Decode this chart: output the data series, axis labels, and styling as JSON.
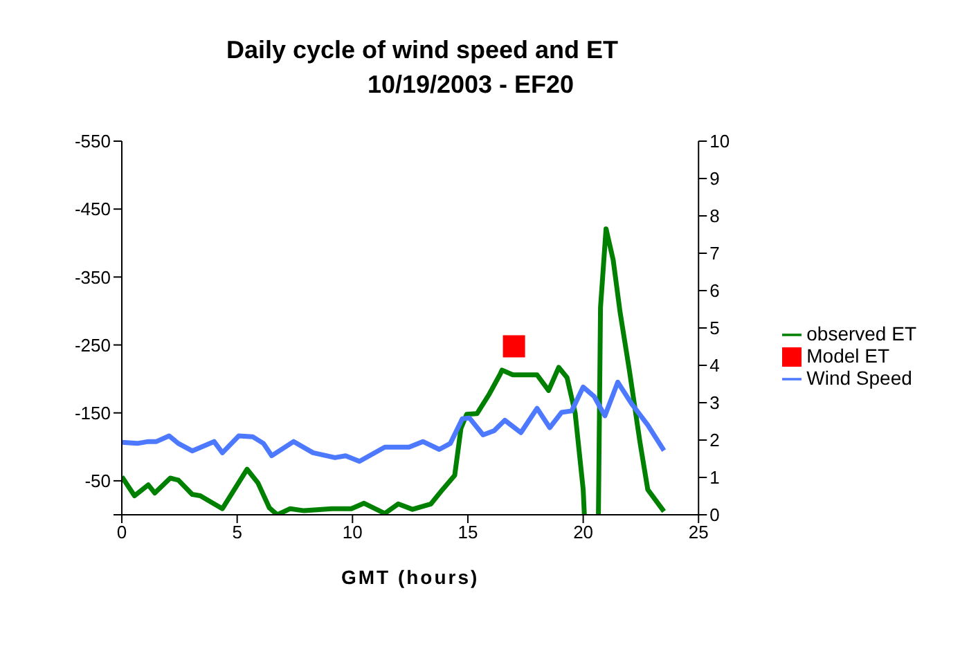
{
  "chart_data": {
    "type": "line",
    "title": "Daily cycle of wind speed and ET",
    "subtitle": "10/19/2003 - EF20",
    "xlabel": "GMT (hours)",
    "xlim": [
      0,
      25
    ],
    "xticks": [
      0,
      5,
      10,
      15,
      20,
      25
    ],
    "ylim": [
      0,
      -550
    ],
    "yticks": [
      {
        "value": 0,
        "label": null
      },
      -50,
      -150,
      -250,
      -350,
      -450,
      -550
    ],
    "y2lim": [
      0,
      10
    ],
    "y2ticks": [
      0,
      1,
      2,
      3,
      4,
      5,
      6,
      7,
      8,
      9,
      10
    ],
    "grid": false,
    "legend": "right",
    "marker": "none",
    "line_style": "solid",
    "series": [
      {
        "name": "observed ET",
        "color": "#008000",
        "x": [
          0,
          0.55,
          1.15,
          1.43,
          2.1,
          2.45,
          3.05,
          3.4,
          4.36,
          5.43,
          5.9,
          6.4,
          6.74,
          7.3,
          7.9,
          9.1,
          9.95,
          10.5,
          11.4,
          11.98,
          12.6,
          13.4,
          13.9,
          14.43,
          14.7,
          14.95,
          15.4,
          15.9,
          16.4,
          16.48,
          16.95,
          18.0,
          18.5,
          18.94,
          19.3,
          19.65,
          20.0,
          20.05,
          20.3,
          20.66,
          20.75,
          20.99,
          21.3,
          21.6,
          22.0,
          22.46,
          22.8,
          23.5
        ],
        "values": [
          -56,
          -28,
          -44,
          -32,
          -54,
          -51,
          -30,
          -28,
          -9,
          -67,
          -47,
          -10,
          0,
          -9,
          -6,
          -9,
          -9,
          -17,
          -2,
          -16,
          -8,
          -16,
          -37,
          -58,
          -127,
          -148,
          -149,
          -176,
          -207,
          -213,
          -206,
          -206,
          -183,
          -217,
          -202,
          -150,
          -37,
          0,
          null,
          0,
          -305,
          -421,
          -375,
          -298,
          -213,
          -107,
          -37,
          -5
        ]
      },
      {
        "name": "Model ET",
        "type": "scatter",
        "marker": "square",
        "color": "#ff0000",
        "x": [
          17.0
        ],
        "values": [
          -248
        ]
      },
      {
        "name": "Wind Speed",
        "axis": "y2",
        "color": "#4d79ff",
        "x": [
          0,
          0.67,
          1.15,
          1.5,
          2.05,
          2.45,
          3.05,
          4.0,
          4.36,
          5.07,
          5.67,
          6.14,
          6.5,
          7.45,
          8.29,
          9.24,
          9.7,
          10.3,
          11.4,
          12.45,
          13.05,
          13.76,
          14.24,
          14.76,
          15.07,
          15.66,
          16.14,
          16.6,
          17.3,
          18.0,
          18.55,
          19.06,
          19.5,
          20.0,
          20.47,
          20.94,
          21.5,
          22.1,
          22.8,
          23.5
        ],
        "values": [
          1.94,
          1.91,
          1.96,
          1.96,
          2.11,
          1.91,
          1.71,
          1.96,
          1.66,
          2.11,
          2.09,
          1.91,
          1.58,
          1.96,
          1.66,
          1.53,
          1.58,
          1.43,
          1.81,
          1.81,
          1.96,
          1.75,
          1.91,
          2.57,
          2.59,
          2.14,
          2.25,
          2.53,
          2.2,
          2.85,
          2.33,
          2.74,
          2.78,
          3.42,
          3.17,
          2.65,
          3.55,
          2.97,
          2.4,
          1.72
        ]
      }
    ]
  }
}
